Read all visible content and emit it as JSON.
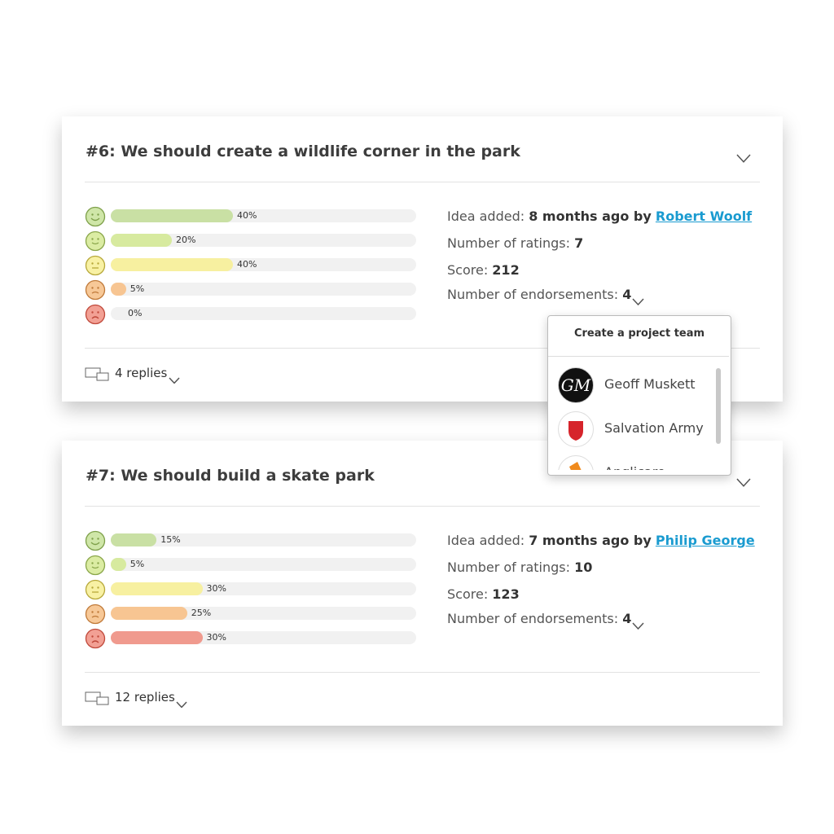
{
  "ideas": [
    {
      "title": "#6: We should create a wildlife corner in the park",
      "ratings": [
        {
          "value": 40,
          "label": "40%"
        },
        {
          "value": 20,
          "label": "20%"
        },
        {
          "value": 40,
          "label": "40%"
        },
        {
          "value": 5,
          "label": "5%"
        },
        {
          "value": 0,
          "label": "0%"
        }
      ],
      "added_label": "Idea added:",
      "added_value": "8 months ago by",
      "author": "Robert Woolf",
      "ratings_label": "Number of ratings:",
      "ratings_count": 7,
      "score_label": "Score:",
      "score": 212,
      "endorsements_label": "Number of endorsements:",
      "endorsements": 4,
      "replies": "4 replies"
    },
    {
      "title": "#7: We should build a skate park",
      "ratings": [
        {
          "value": 15,
          "label": "15%"
        },
        {
          "value": 5,
          "label": "5%"
        },
        {
          "value": 30,
          "label": "30%"
        },
        {
          "value": 25,
          "label": "25%"
        },
        {
          "value": 30,
          "label": "30%"
        }
      ],
      "added_label": "Idea added:",
      "added_value": "7 months ago by",
      "author": "Philip George",
      "ratings_label": "Number of ratings:",
      "ratings_count": 10,
      "score_label": "Score:",
      "score": 123,
      "endorsements_label": "Number of endorsements:",
      "endorsements": 4,
      "replies": "12 replies"
    }
  ],
  "dropdown": {
    "title": "Create a project team",
    "items": [
      "Geoff Muskett",
      "Salvation Army",
      "Anglicare"
    ]
  }
}
